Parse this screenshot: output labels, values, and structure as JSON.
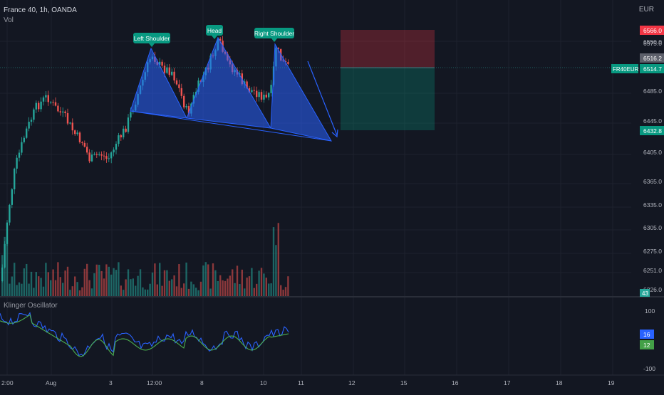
{
  "header": {
    "symbol_line": "France 40, 1h, OANDA",
    "volume_label": "Vol",
    "currency": "EUR"
  },
  "pattern": {
    "left_shoulder": "Left Shoulder",
    "head": "Head",
    "right_shoulder": "Right Shoulder"
  },
  "price_axis": {
    "ticks": [
      "6575.0",
      "6550.0",
      "6485.0",
      "6445.0",
      "6405.0",
      "6365.0",
      "6335.0",
      "6305.0",
      "6275.0",
      "6251.0",
      "6226.0"
    ],
    "stop_label": "6566.0",
    "current_label": "6516.2",
    "symbol_badge": "FR40EUR",
    "symbol_price": "6514.7",
    "target_label": "6432.8",
    "volume_badge": "43"
  },
  "oscillator": {
    "title": "Klinger Oscillator",
    "ticks": [
      "100",
      "-100"
    ],
    "kvo_value": "16",
    "signal_value": "12"
  },
  "time_axis": {
    "labels": [
      "2:00",
      "Aug",
      "3",
      "12:00",
      "8",
      "9",
      "10",
      "11",
      "12",
      "15",
      "16",
      "17",
      "18",
      "19"
    ]
  },
  "colors": {
    "background": "#131722",
    "up": "#26a69a",
    "down": "#ef5350",
    "pattern_fill": "#2962ff",
    "kvo_line": "#2962ff",
    "signal_line": "#4caf50"
  }
}
